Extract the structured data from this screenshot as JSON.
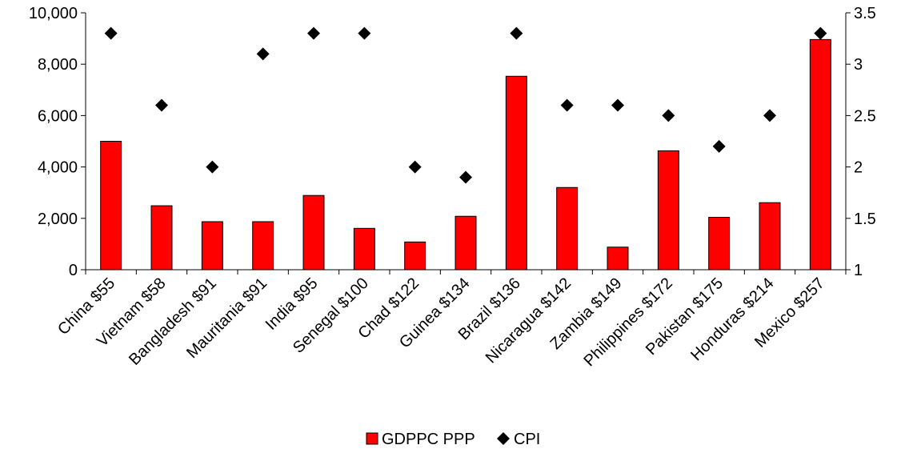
{
  "chart_data": {
    "type": "bar",
    "categories": [
      "China $55",
      "Vietnam $58",
      "Bangladesh $91",
      "Mauritania $91",
      "India $95",
      "Senegal $100",
      "Chad $122",
      "Guinea $134",
      "Brazil $136",
      "Nicaragua $142",
      "Zambia $149",
      "Philippines $172",
      "Pakistan $175",
      "Honduras $214",
      "Mexico $257"
    ],
    "series": [
      {
        "name": "GDPPC PPP",
        "type": "bar",
        "axis": "left",
        "color": "#ff0000",
        "values": [
          5000,
          2490,
          1870,
          1870,
          2890,
          1610,
          1080,
          2080,
          7530,
          3200,
          880,
          4630,
          2040,
          2610,
          8960
        ]
      },
      {
        "name": "CPI",
        "type": "scatter",
        "axis": "right",
        "color": "#000000",
        "marker": "diamond",
        "values": [
          3.3,
          2.6,
          2.0,
          3.1,
          3.3,
          3.3,
          2.0,
          1.9,
          3.3,
          2.6,
          2.6,
          2.5,
          2.2,
          2.5,
          3.3
        ]
      }
    ],
    "y_left": {
      "ylim": [
        0,
        10000
      ],
      "ticks": [
        0,
        2000,
        4000,
        6000,
        8000,
        10000
      ],
      "tick_labels": [
        "0",
        "2,000",
        "4,000",
        "6,000",
        "8,000",
        "10,000"
      ]
    },
    "y_right": {
      "ylim": [
        1,
        3.5
      ],
      "ticks": [
        1,
        1.5,
        2,
        2.5,
        3,
        3.5
      ],
      "tick_labels": [
        "1",
        "1.5",
        "2",
        "2.5",
        "3",
        "3.5"
      ]
    },
    "legend": {
      "placement": "bottom-center",
      "entries": [
        "GDPPC PPP",
        "CPI"
      ]
    },
    "grid": false
  }
}
